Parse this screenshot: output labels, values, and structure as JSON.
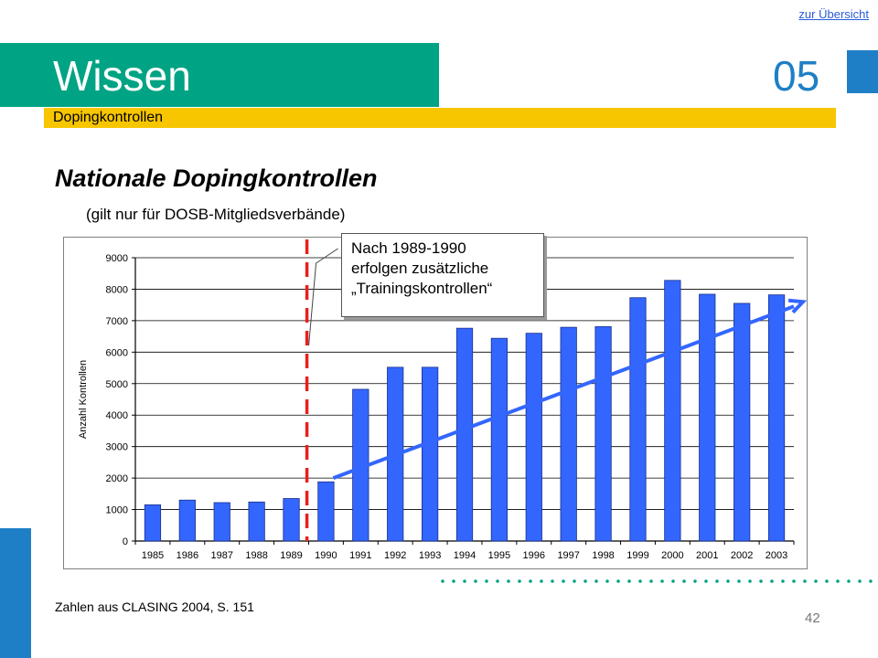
{
  "nav": {
    "overview_link": "zur Übersicht"
  },
  "header": {
    "title": "Wissen",
    "chapter_number": "05",
    "subtitle": "Dopingkontrollen"
  },
  "content": {
    "heading": "Nationale Dopingkontrollen",
    "note": "(gilt nur für DOSB-Mitgliedsverbände)",
    "callout_lines": [
      "Nach 1989-1990",
      "erfolgen zusätzliche",
      "„Trainingskontrollen“"
    ],
    "source": "Zahlen aus CLASING 2004, S. 151",
    "page_number": "42"
  },
  "colors": {
    "green": "#00a383",
    "yellow": "#f7c600",
    "blue": "#1f7fc6",
    "bar": "#3366ff",
    "divider": "#e8201c",
    "trend": "#3366ff"
  },
  "chart_data": {
    "type": "bar",
    "categories": [
      "1985",
      "1986",
      "1987",
      "1988",
      "1989",
      "1990",
      "1991",
      "1992",
      "1993",
      "1994",
      "1995",
      "1996",
      "1997",
      "1998",
      "1999",
      "2000",
      "2001",
      "2002",
      "2003"
    ],
    "values": [
      1150,
      1300,
      1220,
      1240,
      1350,
      1880,
      4820,
      5520,
      5520,
      6760,
      6440,
      6600,
      6790,
      6810,
      7730,
      8280,
      7840,
      7550,
      7820
    ],
    "ylabel": "Anzahl Kontrollen",
    "xlabel": "",
    "ylim": [
      0,
      9000
    ],
    "yticks": [
      0,
      1000,
      2000,
      3000,
      4000,
      5000,
      6000,
      7000,
      8000,
      9000
    ],
    "grid": true,
    "annotations": {
      "divider_between": [
        "1989",
        "1990"
      ],
      "trend_arrow": {
        "from": [
          "1990",
          2000
        ],
        "to": [
          "2003",
          7600
        ]
      }
    }
  }
}
